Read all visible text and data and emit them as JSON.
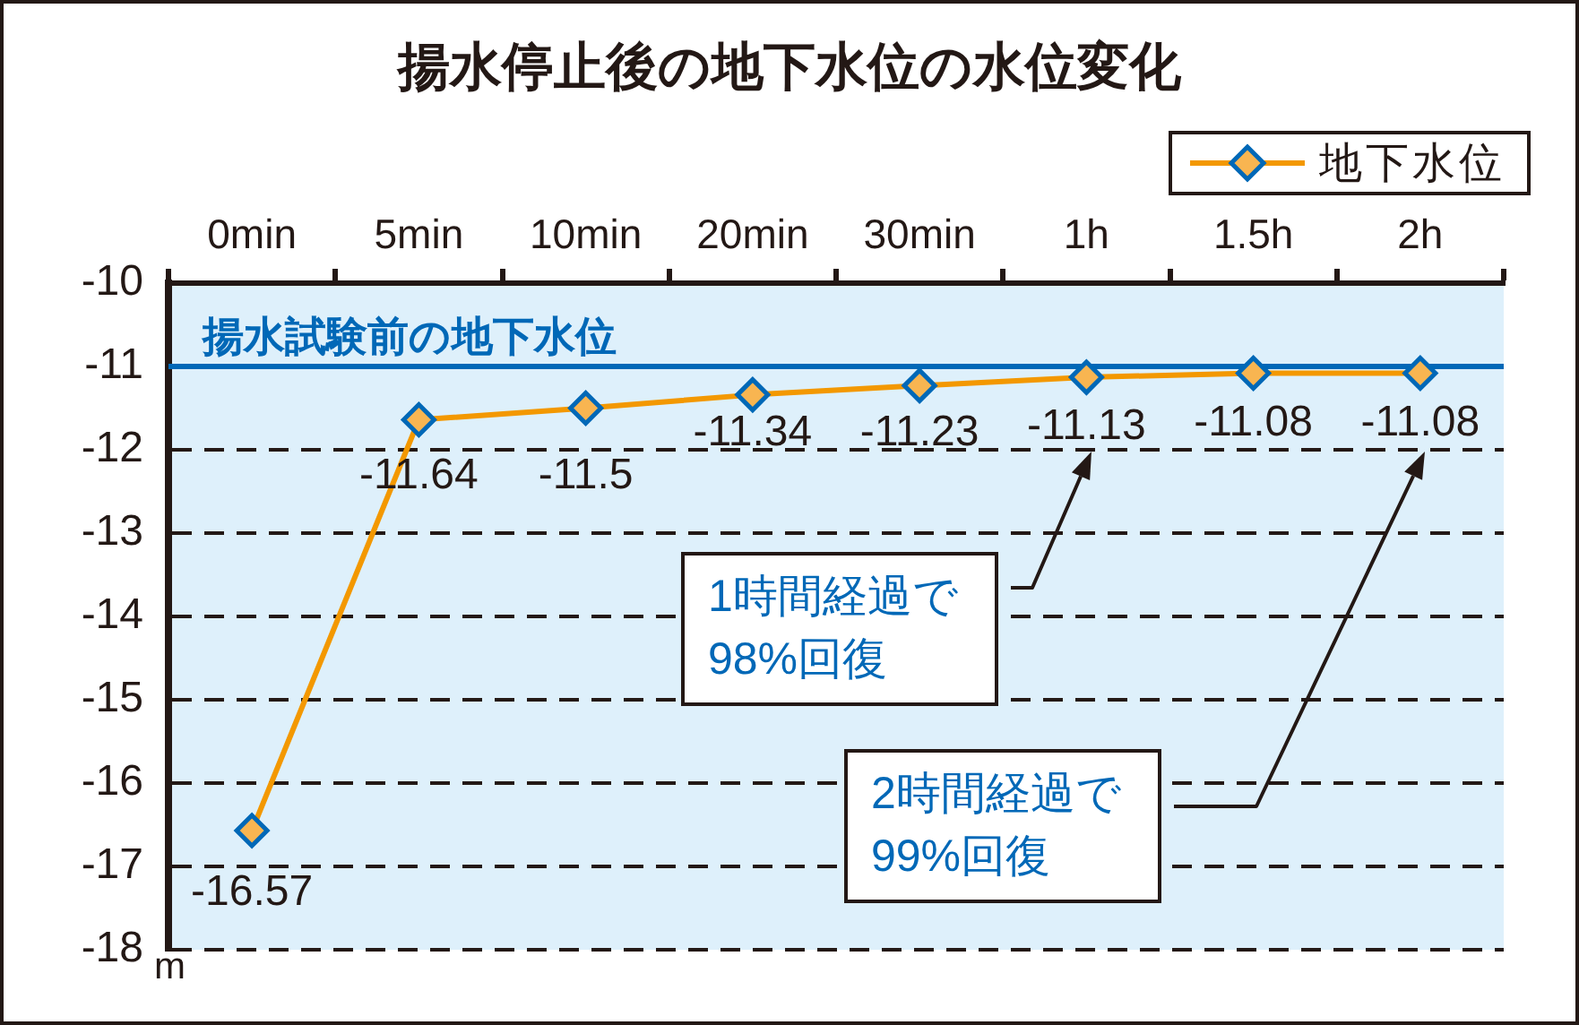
{
  "chart_data": {
    "type": "line",
    "title": "揚水停止後の地下水位の水位変化",
    "ylabel": "m",
    "categories": [
      "0min",
      "5min",
      "10min",
      "20min",
      "30min",
      "1h",
      "1.5h",
      "2h"
    ],
    "series": [
      {
        "name": "地下水位",
        "color": "#f39800",
        "values": [
          -16.57,
          -11.64,
          -11.5,
          -11.34,
          -11.23,
          -11.13,
          -11.08,
          -11.08
        ]
      }
    ],
    "ylim": [
      -18,
      -10
    ],
    "yticks": [
      -18,
      -17,
      -16,
      -15,
      -14,
      -13,
      -12,
      -11,
      -10
    ],
    "grid": "y",
    "legend": "top right",
    "marker": "diamond",
    "line_style": "solid",
    "data_labels": true,
    "ref_lines": [
      {
        "axis": "y",
        "value": -11,
        "label": "揚水試験前の地下水位",
        "color": "#0068b7"
      }
    ],
    "annotations": [
      "1時間経過で\n98%回復",
      "2時間経過で\n99%回復"
    ]
  }
}
